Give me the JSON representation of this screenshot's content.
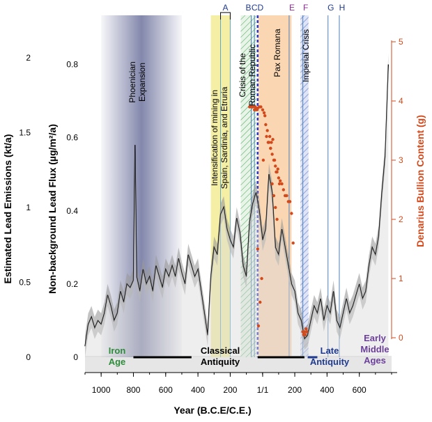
{
  "chart_data": {
    "type": "line",
    "title": "",
    "xlabel": "Year (B.C.E/C.E.)",
    "ylabel_left_outer": "Estimated Lead Emissions (kt/a)",
    "ylabel_left_inner": "Non-background Lead Flux (µg/m²/a)",
    "ylabel_right": "Denarius Bullion Content (g)",
    "xlim": [
      -1100,
      800
    ],
    "x_ticks": [
      -1000,
      -800,
      -600,
      -400,
      -200,
      1,
      200,
      400,
      600
    ],
    "x_tick_labels": [
      "1000",
      "800",
      "600",
      "400",
      "200",
      "1/1",
      "200",
      "400",
      "600"
    ],
    "flux_lim": [
      0,
      0.9
    ],
    "flux_ticks": [
      0,
      0.2,
      0.4,
      0.6,
      0.8
    ],
    "flux_tick_labels": [
      "0",
      "0.2",
      "0.4",
      "0.6",
      "0.8"
    ],
    "emission_ticks": [
      0,
      0.5,
      1,
      1.5,
      2
    ],
    "emission_tick_labels": [
      "0",
      "0.5",
      "1",
      "1.5",
      "2"
    ],
    "bullion_lim": [
      0,
      5
    ],
    "bullion_ticks": [
      0,
      1,
      2,
      3,
      4,
      5
    ],
    "bullion_tick_labels": [
      "0",
      "1",
      "2",
      "3",
      "4",
      "5"
    ],
    "shaded_periods": [
      {
        "label": "Phoenician Expansion",
        "from": -1000,
        "to": -500,
        "color": "#5a6090"
      },
      {
        "label": "Intensification of mining in Spain, Sardinia, and Etruria",
        "from": -320,
        "to": -200,
        "color": "#f5f0a0"
      },
      {
        "label": "Crisis of the Roman Republic",
        "from": -135,
        "to": -40,
        "color": "#2e9a3a"
      },
      {
        "label": "Pax Romana",
        "from": -27,
        "to": 180,
        "color": "#f7c79a"
      },
      {
        "label": "Imperial Crisis",
        "from": 235,
        "to": 285,
        "color": "#8fa2d8"
      }
    ],
    "event_markers": [
      {
        "label": "A",
        "years": [
          -260,
          -200
        ]
      },
      {
        "label": "B",
        "year": -70
      },
      {
        "label": "C",
        "year": -50
      },
      {
        "label": "D",
        "year": -30
      },
      {
        "label": "E",
        "year": 165
      },
      {
        "label": "F",
        "year": 250
      },
      {
        "label": "G",
        "year": 406
      },
      {
        "label": "H",
        "year": 476
      }
    ],
    "eras": [
      {
        "label": "Iron Age",
        "color": "#2d8b3a",
        "bar_from": null,
        "bar_to": null
      },
      {
        "label": "Classical Antiquity",
        "color": "#000000",
        "bar_from": -800,
        "bar_to": 260
      },
      {
        "label": "Late Antiquity",
        "color": "#1f3a8f",
        "bar_from": 280,
        "bar_to": 340
      },
      {
        "label": "Early Middle Ages",
        "color": "#6b3f9a",
        "bar_from": null,
        "bar_to": null
      }
    ],
    "series": [
      {
        "name": "",
        "axis": "flux",
        "x": [
          -1100,
          -1080,
          -1060,
          -1040,
          -1020,
          -1000,
          -980,
          -960,
          -940,
          -920,
          -900,
          -880,
          -860,
          -840,
          -820,
          -800,
          -790,
          -780,
          -760,
          -740,
          -720,
          -700,
          -680,
          -660,
          -640,
          -620,
          -600,
          -580,
          -560,
          -540,
          -520,
          -500,
          -480,
          -460,
          -440,
          -420,
          -400,
          -380,
          -360,
          -340,
          -320,
          -300,
          -280,
          -260,
          -240,
          -220,
          -200,
          -180,
          -160,
          -140,
          -120,
          -100,
          -80,
          -60,
          -40,
          -20,
          1,
          20,
          40,
          60,
          80,
          100,
          120,
          140,
          160,
          180,
          200,
          220,
          240,
          260,
          280,
          300,
          320,
          340,
          360,
          380,
          400,
          420,
          440,
          460,
          480,
          500,
          520,
          540,
          560,
          580,
          600,
          620,
          640,
          660,
          680,
          700,
          720,
          740,
          760,
          780
        ],
        "values": [
          0.03,
          0.09,
          0.11,
          0.08,
          0.1,
          0.09,
          0.12,
          0.17,
          0.14,
          0.1,
          0.12,
          0.18,
          0.15,
          0.2,
          0.19,
          0.21,
          0.58,
          0.22,
          0.18,
          0.24,
          0.2,
          0.22,
          0.18,
          0.25,
          0.22,
          0.19,
          0.24,
          0.22,
          0.25,
          0.22,
          0.27,
          0.23,
          0.2,
          0.28,
          0.25,
          0.22,
          0.24,
          0.18,
          0.12,
          0.06,
          0.22,
          0.3,
          0.28,
          0.39,
          0.41,
          0.35,
          0.32,
          0.3,
          0.38,
          0.34,
          0.25,
          0.22,
          0.37,
          0.42,
          0.45,
          0.4,
          0.32,
          0.35,
          0.5,
          0.45,
          0.3,
          0.28,
          0.35,
          0.3,
          0.25,
          0.2,
          0.18,
          0.12,
          0.1,
          0.05,
          0.06,
          0.1,
          0.14,
          0.12,
          0.16,
          0.1,
          0.14,
          0.12,
          0.18,
          0.1,
          0.08,
          0.12,
          0.16,
          0.12,
          0.14,
          0.17,
          0.2,
          0.16,
          0.18,
          0.25,
          0.3,
          0.28,
          0.33,
          0.45,
          0.55,
          0.8
        ]
      },
      {
        "name": "",
        "axis": "bullion",
        "type": "scatter",
        "x": [
          -80,
          -70,
          -60,
          -50,
          -45,
          -40,
          -35,
          -30,
          -20,
          -10,
          1,
          10,
          15,
          20,
          25,
          30,
          35,
          40,
          45,
          50,
          55,
          60,
          64,
          70,
          75,
          80,
          85,
          90,
          95,
          100,
          105,
          110,
          120,
          130,
          140,
          150,
          160,
          170,
          180,
          190,
          -30,
          -25,
          -15,
          -5,
          5,
          50,
          60,
          70,
          80,
          90,
          250,
          255,
          260,
          265,
          270,
          275
        ],
        "values": [
          3.9,
          3.9,
          3.9,
          3.85,
          3.9,
          3.88,
          3.85,
          3.88,
          3.9,
          3.9,
          3.85,
          3.8,
          3.75,
          3.6,
          3.4,
          3.5,
          3.3,
          3.3,
          3.4,
          3.2,
          3.3,
          3.1,
          3.35,
          3.0,
          3.0,
          2.9,
          2.8,
          2.8,
          2.85,
          2.7,
          2.6,
          2.65,
          2.6,
          2.5,
          2.4,
          2.4,
          2.3,
          2.3,
          2.1,
          1.6,
          1.5,
          0.2,
          0.6,
          1.0,
          3.0,
          3.2,
          2.6,
          2.4,
          2.2,
          2.0,
          0.1,
          0.05,
          0.1,
          0.05,
          0.15,
          0.1
        ]
      }
    ],
    "legend": "none",
    "grid": false
  }
}
